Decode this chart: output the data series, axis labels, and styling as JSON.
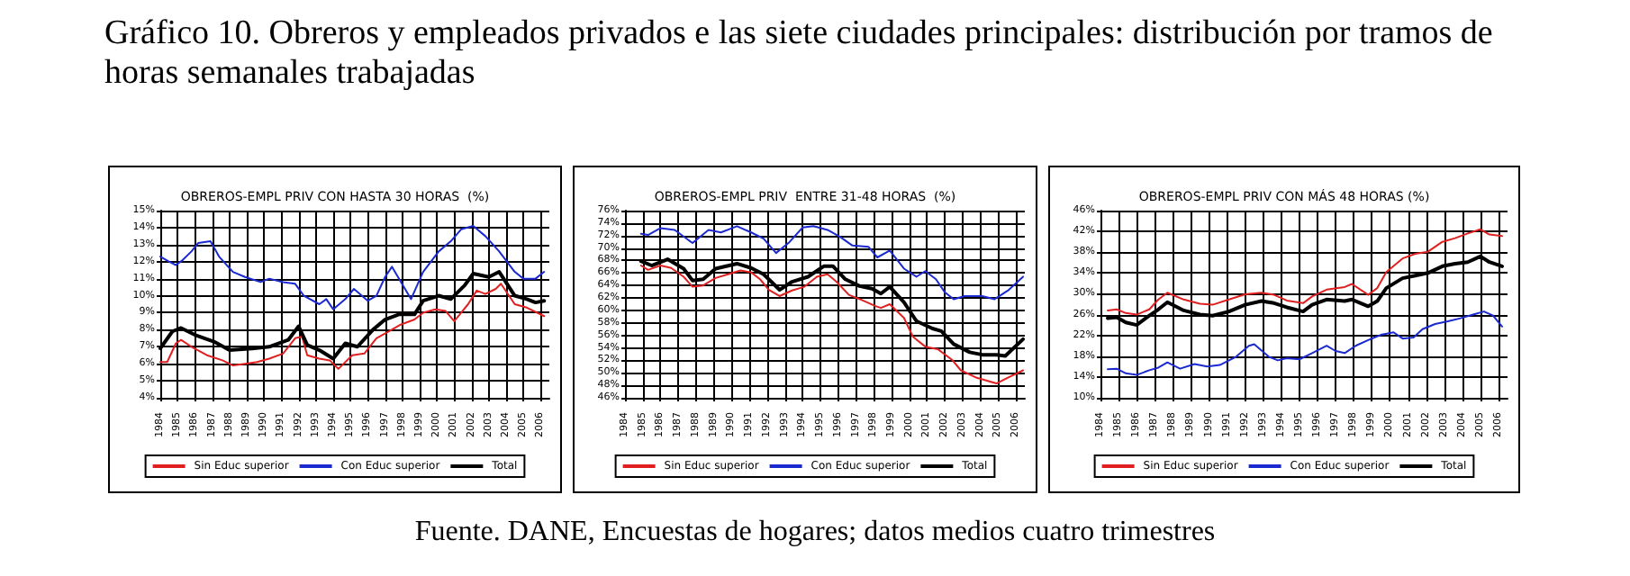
{
  "chart_data": [
    {
      "type": "line",
      "title": "OBREROS-EMPL PRIV CON HASTA 30 HORAS  (%)",
      "annotations": [
        "Gráfico 10. Obreros y empleados privados e las siete ciudades principales: distribución por tramos de horas semanales trabajadas",
        "Fuente. DANE, Encuestas de hogares; datos medios cuatro trimestres"
      ],
      "xlim": [
        1984,
        2006.5
      ],
      "xticks": [
        1984,
        1985,
        1986,
        1987,
        1988,
        1989,
        1990,
        1991,
        1992,
        1993,
        1994,
        1995,
        1996,
        1997,
        1998,
        1999,
        2000,
        2001,
        2002,
        2003,
        2004,
        2005,
        2006
      ],
      "ylim": [
        4,
        15
      ],
      "yticks": [
        {
          "value": 4,
          "label": "4%"
        },
        {
          "value": 5,
          "label": "5%"
        },
        {
          "value": 6,
          "label": "6%"
        },
        {
          "value": 7,
          "label": "7%"
        },
        {
          "value": 8,
          "label": "8%"
        },
        {
          "value": 9,
          "label": "9%"
        },
        {
          "value": 10,
          "label": "10%"
        },
        {
          "value": 11,
          "label": "11%"
        },
        {
          "value": 12,
          "label": "12%"
        },
        {
          "value": 13,
          "label": "13%"
        },
        {
          "value": 14,
          "label": "14%"
        },
        {
          "value": 15,
          "label": "15%"
        }
      ],
      "grid": true,
      "legend": "bottom",
      "marker": "none",
      "line_style": "solid",
      "series": [
        {
          "name": "Sin Educ superior",
          "color": "#e02020",
          "x": [
            1984.0,
            1984.4,
            1984.9,
            1985.2,
            1985.8,
            1986.7,
            1987.6,
            1988.2,
            1988.9,
            1989.6,
            1990.3,
            1991.1,
            1991.8,
            1992.2,
            1992.5,
            1993.2,
            1993.8,
            1994.3,
            1995.1,
            1995.8,
            1996.5,
            1997.2,
            1997.9,
            1998.7,
            1999.2,
            1999.9,
            2000.5,
            2001.0,
            2001.8,
            2002.3,
            2002.8,
            2003.4,
            2003.7,
            2004.5,
            2005.2,
            2006.2
          ],
          "values": [
            6.1,
            6.1,
            7.2,
            7.4,
            7.0,
            6.5,
            6.2,
            5.9,
            6.0,
            6.1,
            6.3,
            6.6,
            7.5,
            7.6,
            6.5,
            6.3,
            6.2,
            5.7,
            6.5,
            6.6,
            7.5,
            7.9,
            8.3,
            8.6,
            9.0,
            9.2,
            9.1,
            8.5,
            9.5,
            10.3,
            10.1,
            10.4,
            10.7,
            9.5,
            9.3,
            8.8
          ]
        },
        {
          "name": "Con Educ superior",
          "color": "#1a2ad0",
          "x": [
            1984.0,
            1984.5,
            1984.9,
            1985.3,
            1985.8,
            1986.2,
            1986.9,
            1987.4,
            1988.2,
            1988.9,
            1989.8,
            1990.3,
            1991.1,
            1991.8,
            1992.3,
            1993.2,
            1993.6,
            1994.0,
            1994.7,
            1995.2,
            1996.0,
            1996.5,
            1997.0,
            1997.4,
            1998.5,
            1999.2,
            2000.1,
            2000.8,
            2001.4,
            2002.1,
            2002.8,
            2003.6,
            2004.5,
            2005.0,
            2005.7,
            2006.2
          ],
          "values": [
            12.3,
            12.0,
            11.8,
            12.1,
            12.6,
            13.1,
            13.2,
            12.3,
            11.4,
            11.1,
            10.8,
            11.0,
            10.8,
            10.7,
            10.0,
            9.5,
            9.8,
            9.2,
            9.8,
            10.4,
            9.7,
            10.0,
            11.1,
            11.7,
            9.8,
            11.4,
            12.6,
            13.2,
            13.9,
            14.1,
            13.5,
            12.6,
            11.4,
            11.0,
            11.0,
            11.4
          ]
        },
        {
          "name": "Total",
          "color": "#000000",
          "x": [
            1984.0,
            1984.7,
            1985.2,
            1986.0,
            1987.1,
            1988.0,
            1989.3,
            1990.3,
            1991.4,
            1992.0,
            1992.5,
            1993.2,
            1994.0,
            1994.7,
            1995.4,
            1996.3,
            1997.0,
            1997.8,
            1998.7,
            1999.2,
            2000.1,
            2000.8,
            2001.6,
            2002.1,
            2003.0,
            2003.6,
            2004.5,
            2005.2,
            2005.7,
            2006.2
          ],
          "values": [
            6.9,
            7.9,
            8.1,
            7.7,
            7.3,
            6.8,
            6.9,
            7.0,
            7.4,
            8.2,
            7.1,
            6.8,
            6.3,
            7.2,
            7.0,
            8.0,
            8.6,
            8.9,
            8.9,
            9.7,
            10.0,
            9.8,
            10.6,
            11.3,
            11.1,
            11.4,
            10.0,
            9.8,
            9.6,
            9.7
          ]
        }
      ]
    },
    {
      "type": "line",
      "title": "OBREROS-EMPL PRIV  ENTRE 31-48 HORAS  (%)",
      "xlim": [
        1984,
        2006.5
      ],
      "xticks": [
        1984,
        1985,
        1986,
        1987,
        1988,
        1989,
        1990,
        1991,
        1992,
        1993,
        1994,
        1995,
        1996,
        1997,
        1998,
        1999,
        2000,
        2001,
        2002,
        2003,
        2004,
        2005,
        2006
      ],
      "ylim": [
        46,
        76
      ],
      "yticks": [
        {
          "value": 46,
          "label": "46%"
        },
        {
          "value": 48,
          "label": "48%"
        },
        {
          "value": 50,
          "label": "50%"
        },
        {
          "value": 52,
          "label": "52%"
        },
        {
          "value": 54,
          "label": "54%"
        },
        {
          "value": 56,
          "label": "56%"
        },
        {
          "value": 58,
          "label": "58%"
        },
        {
          "value": 60,
          "label": "60%"
        },
        {
          "value": 62,
          "label": "62%"
        },
        {
          "value": 64,
          "label": "64%"
        },
        {
          "value": 66,
          "label": "66%"
        },
        {
          "value": 68,
          "label": "68%"
        },
        {
          "value": 70,
          "label": "70%"
        },
        {
          "value": 72,
          "label": "72%"
        },
        {
          "value": 74,
          "label": "74%"
        },
        {
          "value": 76,
          "label": "76%"
        }
      ],
      "grid": true,
      "legend": "bottom",
      "marker": "none",
      "line_style": "solid",
      "series": [
        {
          "name": "Sin Educ superior",
          "color": "#e02020",
          "x": [
            1984.9,
            1985.3,
            1986.0,
            1986.6,
            1987.3,
            1987.8,
            1988.4,
            1989.1,
            1989.8,
            1990.5,
            1991.1,
            1991.6,
            1992.1,
            1992.7,
            1993.4,
            1994.1,
            1994.8,
            1995.4,
            1995.9,
            1996.6,
            1997.3,
            1998.1,
            1998.4,
            1998.9,
            1999.7,
            2000.2,
            2000.9,
            2001.6,
            2002.4,
            2002.9,
            2003.8,
            2004.9,
            2005.6,
            2006.4
          ],
          "values": [
            67.2,
            66.5,
            67.2,
            66.8,
            65.4,
            63.8,
            64.0,
            65.2,
            65.8,
            66.4,
            66.1,
            65.0,
            63.3,
            62.3,
            63.2,
            63.8,
            65.4,
            65.8,
            64.6,
            62.5,
            61.7,
            60.7,
            60.4,
            61.0,
            58.8,
            55.8,
            54.2,
            53.8,
            52.1,
            50.4,
            49.2,
            48.3,
            49.3,
            50.4
          ]
        },
        {
          "name": "Con Educ superior",
          "color": "#1a2ad0",
          "x": [
            1984.9,
            1985.3,
            1986.0,
            1986.8,
            1987.8,
            1988.7,
            1989.4,
            1990.3,
            1991.1,
            1991.8,
            1992.5,
            1993.2,
            1994.0,
            1994.6,
            1995.4,
            1996.1,
            1996.8,
            1997.7,
            1998.2,
            1998.9,
            1999.7,
            2000.4,
            2000.9,
            2001.5,
            2002.0,
            2002.5,
            2003.1,
            2004.1,
            2004.8,
            2005.6,
            2006.4
          ],
          "values": [
            72.3,
            72.1,
            73.2,
            72.9,
            70.8,
            72.9,
            72.5,
            73.5,
            72.5,
            71.5,
            69.2,
            70.8,
            73.3,
            73.5,
            72.9,
            71.8,
            70.4,
            70.2,
            68.5,
            69.6,
            66.7,
            65.4,
            66.3,
            65.0,
            62.9,
            61.8,
            62.3,
            62.3,
            61.8,
            63.3,
            65.4
          ]
        },
        {
          "name": "Total",
          "color": "#000000",
          "x": [
            1984.9,
            1985.5,
            1986.4,
            1987.3,
            1987.8,
            1988.4,
            1989.1,
            1990.3,
            1991.1,
            1991.8,
            1992.7,
            1993.4,
            1994.3,
            1995.2,
            1995.7,
            1996.4,
            1997.2,
            1997.9,
            1998.4,
            1998.9,
            1999.7,
            2000.4,
            2001.3,
            2001.8,
            2002.5,
            2003.4,
            2004.1,
            2004.9,
            2005.4,
            2006.4
          ],
          "values": [
            67.9,
            67.2,
            68.2,
            66.7,
            64.8,
            65.0,
            66.7,
            67.5,
            66.8,
            65.8,
            63.3,
            64.6,
            65.4,
            67.1,
            67.1,
            65.0,
            63.9,
            63.5,
            62.7,
            63.8,
            61.3,
            58.3,
            57.1,
            56.7,
            54.6,
            53.3,
            52.9,
            52.9,
            52.7,
            55.4
          ]
        }
      ]
    },
    {
      "type": "line",
      "title": "OBREROS-EMPL PRIV CON MÁS 48 HORAS (%)",
      "xlim": [
        1984,
        2006.5
      ],
      "xticks": [
        1984,
        1985,
        1986,
        1987,
        1988,
        1989,
        1990,
        1991,
        1992,
        1993,
        1994,
        1995,
        1996,
        1997,
        1998,
        1999,
        2000,
        2001,
        2002,
        2003,
        2004,
        2005,
        2006
      ],
      "ylim": [
        10,
        46
      ],
      "yticks": [
        {
          "value": 10,
          "label": "10%"
        },
        {
          "value": 14,
          "label": "14%"
        },
        {
          "value": 18,
          "label": "18%"
        },
        {
          "value": 22,
          "label": "22%"
        },
        {
          "value": 26,
          "label": "26%"
        },
        {
          "value": 30,
          "label": "30%"
        },
        {
          "value": 34,
          "label": "34%"
        },
        {
          "value": 38,
          "label": "38%"
        },
        {
          "value": 42,
          "label": "42%"
        },
        {
          "value": 46,
          "label": "46%"
        }
      ],
      "grid": true,
      "legend": "bottom",
      "marker": "none",
      "line_style": "solid",
      "series": [
        {
          "name": "Sin Educ superior",
          "color": "#e02020",
          "x": [
            1984.4,
            1984.9,
            1985.4,
            1986.0,
            1986.7,
            1987.2,
            1987.7,
            1988.6,
            1989.5,
            1990.2,
            1991.1,
            1992.0,
            1992.9,
            1993.6,
            1994.3,
            1995.2,
            1995.7,
            1996.5,
            1997.5,
            1997.9,
            1998.8,
            1999.3,
            1999.8,
            2000.7,
            2001.4,
            2002.1,
            2002.9,
            2003.6,
            2004.3,
            2005.0,
            2005.5,
            2006.2
          ],
          "values": [
            26.8,
            27.0,
            26.3,
            26.0,
            27.0,
            28.9,
            30.2,
            28.9,
            28.1,
            27.9,
            28.9,
            29.9,
            30.2,
            29.8,
            28.7,
            28.2,
            29.5,
            30.8,
            31.3,
            31.9,
            29.8,
            31.1,
            34.2,
            36.8,
            37.7,
            38.1,
            40.0,
            40.7,
            41.6,
            42.4,
            41.4,
            41.1
          ]
        },
        {
          "name": "Con Educ superior",
          "color": "#1a2ad0",
          "x": [
            1984.4,
            1984.9,
            1985.4,
            1986.0,
            1986.7,
            1987.2,
            1987.7,
            1988.4,
            1989.2,
            1989.9,
            1990.6,
            1991.5,
            1992.2,
            1992.5,
            1993.3,
            1993.8,
            1994.3,
            1995.0,
            1995.7,
            1996.5,
            1997.0,
            1997.5,
            1998.1,
            1998.8,
            1999.5,
            2000.2,
            2000.7,
            2001.3,
            2001.8,
            2002.5,
            2003.2,
            2003.9,
            2004.6,
            2005.2,
            2005.7,
            2006.2
          ],
          "values": [
            15.5,
            15.6,
            14.7,
            14.4,
            15.3,
            15.8,
            16.8,
            15.6,
            16.5,
            16.0,
            16.3,
            17.9,
            20.0,
            20.3,
            17.9,
            17.2,
            17.6,
            17.4,
            18.6,
            20.0,
            19.0,
            18.6,
            20.0,
            21.1,
            22.1,
            22.6,
            21.4,
            21.6,
            23.2,
            24.2,
            24.7,
            25.3,
            26.0,
            26.6,
            25.8,
            23.7
          ]
        },
        {
          "name": "Total",
          "color": "#000000",
          "x": [
            1984.4,
            1984.9,
            1985.4,
            1986.0,
            1986.7,
            1987.2,
            1987.7,
            1988.6,
            1989.5,
            1990.2,
            1991.1,
            1992.0,
            1992.9,
            1993.6,
            1994.3,
            1995.2,
            1995.7,
            1996.5,
            1997.5,
            1997.9,
            1998.8,
            1999.3,
            1999.8,
            2000.7,
            2001.4,
            2002.1,
            2002.9,
            2003.6,
            2004.3,
            2005.0,
            2005.5,
            2006.2
          ],
          "values": [
            25.3,
            25.5,
            24.5,
            24.0,
            25.8,
            27.0,
            28.4,
            26.8,
            26.0,
            25.8,
            26.6,
            27.9,
            28.6,
            28.2,
            27.4,
            26.6,
            27.9,
            28.9,
            28.6,
            28.9,
            27.6,
            28.6,
            31.1,
            33.0,
            33.5,
            34.0,
            35.3,
            35.8,
            36.1,
            37.2,
            36.1,
            35.3
          ]
        }
      ]
    }
  ]
}
